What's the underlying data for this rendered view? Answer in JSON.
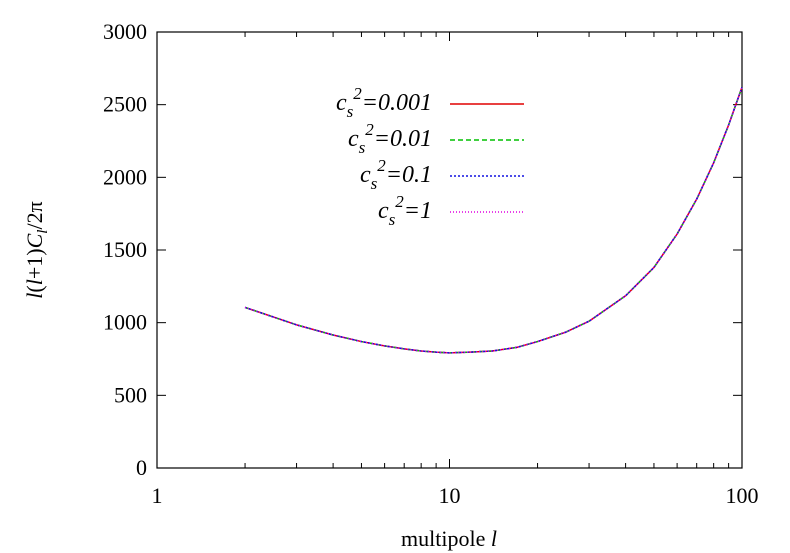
{
  "chart_data": {
    "type": "line",
    "title": "",
    "xlabel": "multipole l",
    "ylabel": "l(l+1)C_l/2π",
    "x_scale": "log",
    "xlim": [
      1,
      100
    ],
    "ylim": [
      0,
      3000
    ],
    "x_ticks": [
      {
        "value": 1,
        "label": "1"
      },
      {
        "value": 10,
        "label": "10"
      },
      {
        "value": 100,
        "label": "100"
      }
    ],
    "y_ticks": [
      {
        "value": 0,
        "label": "0"
      },
      {
        "value": 500,
        "label": "500"
      },
      {
        "value": 1000,
        "label": "1000"
      },
      {
        "value": 1500,
        "label": "1500"
      },
      {
        "value": 2000,
        "label": "2000"
      },
      {
        "value": 2500,
        "label": "2500"
      },
      {
        "value": 3000,
        "label": "3000"
      }
    ],
    "grid": false,
    "legend_position": "top-center",
    "series": [
      {
        "name": "c_s^2=0.001",
        "name_base": "c",
        "name_sub": "s",
        "name_sup": "2",
        "name_value": "=0.001",
        "color": "#e00000",
        "dash": "solid",
        "x": [
          2,
          3,
          4,
          5,
          6,
          7,
          8,
          9,
          10,
          12,
          14,
          17,
          20,
          25,
          30,
          40,
          50,
          60,
          70,
          80,
          90,
          100
        ],
        "y": [
          1105,
          985,
          915,
          870,
          840,
          820,
          805,
          797,
          792,
          798,
          805,
          830,
          870,
          935,
          1010,
          1185,
          1380,
          1610,
          1850,
          2100,
          2360,
          2620
        ]
      },
      {
        "name": "c_s^2=0.01",
        "name_base": "c",
        "name_sub": "s",
        "name_sup": "2",
        "name_value": "=0.01",
        "color": "#00c000",
        "dash": "dashed",
        "x": [
          2,
          3,
          4,
          5,
          6,
          7,
          8,
          9,
          10,
          12,
          14,
          17,
          20,
          25,
          30,
          40,
          50,
          60,
          70,
          80,
          90,
          100
        ],
        "y": [
          1105,
          985,
          915,
          870,
          840,
          820,
          805,
          797,
          792,
          798,
          805,
          830,
          870,
          935,
          1010,
          1185,
          1380,
          1610,
          1850,
          2100,
          2360,
          2620
        ]
      },
      {
        "name": "c_s^2=0.1",
        "name_base": "c",
        "name_sub": "s",
        "name_sup": "2",
        "name_value": "=0.1",
        "color": "#1010e0",
        "dash": "dotted",
        "x": [
          2,
          3,
          4,
          5,
          6,
          7,
          8,
          9,
          10,
          12,
          14,
          17,
          20,
          25,
          30,
          40,
          50,
          60,
          70,
          80,
          90,
          100
        ],
        "y": [
          1105,
          985,
          915,
          870,
          840,
          820,
          805,
          797,
          792,
          798,
          805,
          830,
          870,
          935,
          1010,
          1185,
          1380,
          1610,
          1850,
          2100,
          2360,
          2620
        ]
      },
      {
        "name": "c_s^2=1",
        "name_base": "c",
        "name_sub": "s",
        "name_sup": "2",
        "name_value": "=1",
        "color": "#e000e0",
        "dash": "fine-dotted",
        "x": [
          2,
          3,
          4,
          5,
          6,
          7,
          8,
          9,
          10,
          12,
          14,
          17,
          20,
          25,
          30,
          40,
          50,
          60,
          70,
          80,
          90,
          100
        ],
        "y": [
          1105,
          985,
          915,
          870,
          840,
          820,
          805,
          797,
          792,
          798,
          805,
          830,
          870,
          935,
          1010,
          1185,
          1380,
          1610,
          1850,
          2100,
          2360,
          2620
        ]
      }
    ]
  }
}
